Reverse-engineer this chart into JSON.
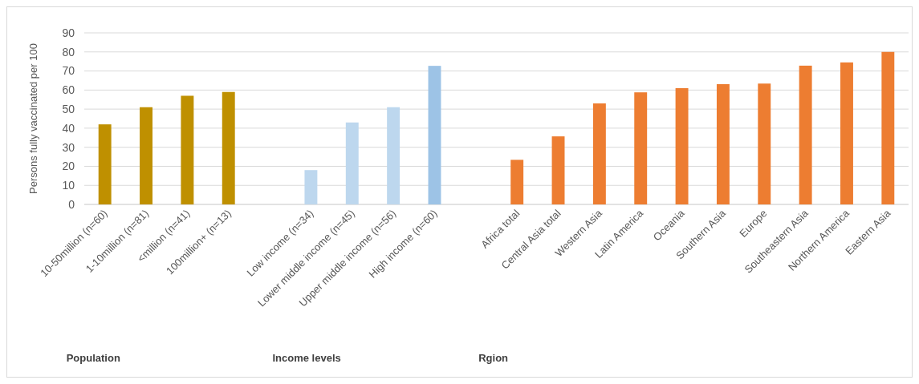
{
  "chart_data": {
    "type": "bar",
    "ylabel": "Persons fully vaccinated per 100",
    "categories": [
      "10-50million (n=60)",
      "1-10million (n=81)",
      "<million (n=41)",
      "100million+ (n=13)",
      null,
      "Low income (n=34)",
      "Lower middle income (n=45)",
      "Upper middle income (n=56)",
      "High income (n=60)",
      null,
      "Africa total",
      "Central Asia total",
      "Western Asia",
      "Latin America",
      "Oceania",
      "Southern Asia",
      "Europe",
      "Southeastern Asia",
      "Northern America",
      "Eastern Asia"
    ],
    "values": [
      42,
      51,
      57,
      59,
      null,
      18,
      43,
      51,
      72.7,
      null,
      23.4,
      35.7,
      53,
      58.8,
      61,
      63.1,
      63.4,
      72.8,
      74.5,
      80
    ],
    "colors": [
      "#bf9000",
      "#bf9000",
      "#bf9000",
      "#bf9000",
      null,
      "#bdd7ee",
      "#bdd7ee",
      "#bdd7ee",
      "#9dc3e6",
      null,
      "#ed7d31",
      "#ed7d31",
      "#ed7d31",
      "#ed7d31",
      "#ed7d31",
      "#ed7d31",
      "#ed7d31",
      "#ed7d31",
      "#ed7d31",
      "#ed7d31"
    ],
    "ylim": [
      0,
      90
    ],
    "yticks": [
      0,
      10,
      20,
      30,
      40,
      50,
      60,
      70,
      80,
      90
    ],
    "grid": "y",
    "annotations": [
      "Population",
      "Income levels",
      "Rgion"
    ]
  }
}
